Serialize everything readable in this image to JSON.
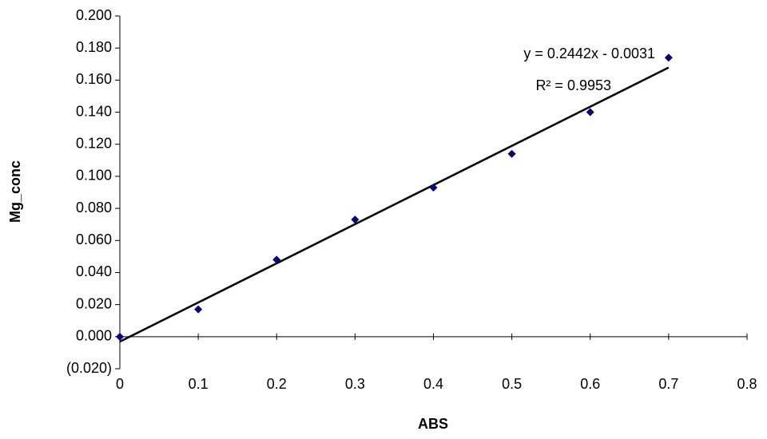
{
  "chart_data": {
    "type": "scatter",
    "x_label": "ABS",
    "y_label": "Mg_conc",
    "x": [
      0,
      0.1,
      0.2,
      0.3,
      0.4,
      0.5,
      0.6,
      0.7
    ],
    "series": [
      {
        "name": "Mg_conc",
        "color": "#000080",
        "values": [
          0,
          0.017,
          0.048,
          0.073,
          0.093,
          0.114,
          0.14,
          0.174
        ]
      }
    ],
    "trendline": {
      "equation": "y = 0.2442x - 0.0031",
      "r_squared": "R² = 0.9953",
      "slope": 0.2442,
      "intercept": -0.0031,
      "color": "#000000"
    },
    "xlim": [
      0,
      0.8
    ],
    "xticks": [
      0,
      0.1,
      0.2,
      0.3,
      0.4,
      0.5,
      0.6,
      0.7,
      0.8
    ],
    "ylim": [
      -0.02,
      0.2
    ],
    "yticks": [
      {
        "value": -0.02,
        "label": "(0.020)"
      },
      {
        "value": 0,
        "label": "0.000"
      },
      {
        "value": 0.02,
        "label": "0.020"
      },
      {
        "value": 0.04,
        "label": "0.040"
      },
      {
        "value": 0.06,
        "label": "0.060"
      },
      {
        "value": 0.08,
        "label": "0.080"
      },
      {
        "value": 0.1,
        "label": "0.100"
      },
      {
        "value": 0.12,
        "label": "0.120"
      },
      {
        "value": 0.14,
        "label": "0.140"
      },
      {
        "value": 0.16,
        "label": "0.160"
      },
      {
        "value": 0.18,
        "label": "0.180"
      },
      {
        "value": 0.2,
        "label": "0.200"
      }
    ],
    "grid": false
  }
}
